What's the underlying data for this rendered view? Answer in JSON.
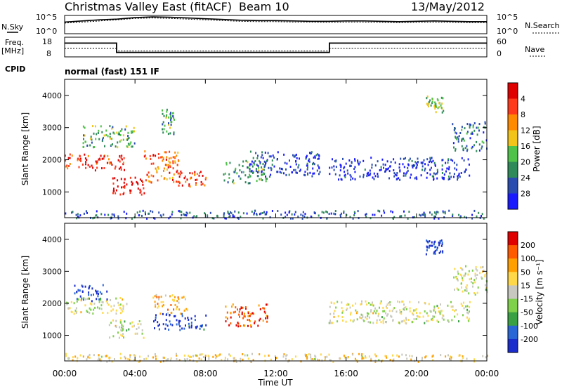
{
  "header": {
    "title": "Christmas Valley East (fitACF)",
    "beam": "Beam 10",
    "date": "13/May/2012"
  },
  "chart_data": [
    {
      "type": "line",
      "panel": "noise",
      "left_label": "N.Sky",
      "right_label": "N.Search",
      "left_ticks": [
        "10^5",
        "10^0"
      ],
      "right_ticks": [
        "10^5",
        "10^0"
      ],
      "series": [
        {
          "name": "N.Sky",
          "x": [
            0,
            1,
            2,
            3,
            4,
            5,
            6,
            7,
            8,
            9,
            10,
            11,
            12,
            13,
            14,
            15,
            16,
            17,
            18,
            19,
            20,
            21,
            22,
            23,
            24
          ],
          "values": [
            3.2,
            3.5,
            3.8,
            4.0,
            4.4,
            4.6,
            4.5,
            4.3,
            4.1,
            3.9,
            3.7,
            3.6,
            3.6,
            3.5,
            3.4,
            3.4,
            3.5,
            3.5,
            3.4,
            3.3,
            3.4,
            3.5,
            3.4,
            3.3,
            3.3
          ]
        },
        {
          "name": "N.Search",
          "x": [
            0,
            1,
            2,
            3,
            4,
            5,
            6,
            7,
            8,
            9,
            10,
            11,
            12,
            13,
            14,
            15,
            16,
            17,
            18,
            19,
            20,
            21,
            22,
            23,
            24
          ],
          "values": [
            2.9,
            3.2,
            3.5,
            3.8,
            4.2,
            4.3,
            4.2,
            4.0,
            3.8,
            3.6,
            3.4,
            3.3,
            3.3,
            3.2,
            3.2,
            3.1,
            3.2,
            3.2,
            3.1,
            3.0,
            3.1,
            3.2,
            3.1,
            3.0,
            3.0
          ]
        }
      ],
      "xlim": [
        0,
        24
      ],
      "ylim": [
        0,
        5
      ]
    },
    {
      "type": "line",
      "panel": "frequency",
      "left_label": "Freq.",
      "left_unit": "[MHz]",
      "right_label": "Nave",
      "left_ticks": [
        "18",
        "8"
      ],
      "right_ticks": [
        "60",
        "0"
      ],
      "series": [
        {
          "name": "Freq.",
          "x": [
            0,
            2.95,
            2.95,
            15.05,
            15.05,
            24
          ],
          "values": [
            15,
            15,
            10.3,
            10.3,
            15,
            15
          ]
        },
        {
          "name": "Nave",
          "x": [
            0,
            2.95,
            2.95,
            15.05,
            15.05,
            24
          ],
          "values": [
            26,
            26,
            18,
            18,
            26,
            26
          ]
        }
      ],
      "xlim": [
        0,
        24
      ],
      "ylim": [
        8,
        18
      ]
    },
    {
      "type": "text",
      "panel": "cpid",
      "label": "CPID",
      "value": "normal (fast) 151 IF"
    },
    {
      "type": "heatmap",
      "panel": "power",
      "ylabel": "Slant Range [km]",
      "yticks": [
        "1000",
        "2000",
        "3000",
        "4000"
      ],
      "ylim": [
        200,
        4500
      ],
      "xlim": [
        0,
        24
      ],
      "colorbar": {
        "label": "Power [dB]",
        "ticks": [
          "4",
          "8",
          "12",
          "16",
          "20",
          "24",
          "28"
        ],
        "colors": [
          "#1a1aff",
          "#2a4cb0",
          "#2f8a5a",
          "#4fc24a",
          "#f2c419",
          "#ff8a00",
          "#ff3a1a",
          "#e00000"
        ]
      },
      "regions": [
        {
          "x": [
            0,
            3.5
          ],
          "y": [
            1700,
            2200
          ],
          "level": 0.85
        },
        {
          "x": [
            2.5,
            4.5
          ],
          "y": [
            950,
            1500
          ],
          "level": 0.95
        },
        {
          "x": [
            4.5,
            6.5
          ],
          "y": [
            1300,
            2300
          ],
          "level": 0.75
        },
        {
          "x": [
            6.3,
            8.0
          ],
          "y": [
            1200,
            1700
          ],
          "level": 0.85
        },
        {
          "x": [
            1.0,
            4.0
          ],
          "y": [
            2400,
            3100
          ],
          "level": 0.4
        },
        {
          "x": [
            5.5,
            6.2
          ],
          "y": [
            2800,
            3600
          ],
          "level": 0.35
        },
        {
          "x": [
            9.0,
            11.5
          ],
          "y": [
            1300,
            2000
          ],
          "level": 0.35
        },
        {
          "x": [
            10.5,
            14.5
          ],
          "y": [
            1500,
            2300
          ],
          "level": 0.15
        },
        {
          "x": [
            15.0,
            23.0
          ],
          "y": [
            1400,
            2100
          ],
          "level": 0.1
        },
        {
          "x": [
            20.5,
            21.5
          ],
          "y": [
            3500,
            4000
          ],
          "level": 0.45
        },
        {
          "x": [
            22.0,
            24.0
          ],
          "y": [
            2300,
            3200
          ],
          "level": 0.25
        },
        {
          "x": [
            0,
            24
          ],
          "y": [
            200,
            450
          ],
          "level": 0.2
        }
      ]
    },
    {
      "type": "heatmap",
      "panel": "velocity",
      "ylabel": "Slant Range [km]",
      "xlabel": "Time UT",
      "yticks": [
        "1000",
        "2000",
        "3000",
        "4000"
      ],
      "xticks": [
        "00:00",
        "04:00",
        "08:00",
        "12:00",
        "16:00",
        "20:00",
        "00:00"
      ],
      "ylim": [
        200,
        4500
      ],
      "xlim": [
        0,
        24
      ],
      "colorbar": {
        "label": "Velocity [m s⁻¹]",
        "ticks": [
          "200",
          "100",
          "50",
          "15",
          "-15",
          "-50",
          "-100",
          "-200"
        ],
        "colors": [
          "#1a2dcc",
          "#2a66d6",
          "#3aa044",
          "#7fd04a",
          "#c8c8c0",
          "#ffd84a",
          "#ffa000",
          "#ff5a00",
          "#e00000"
        ]
      },
      "regions": [
        {
          "x": [
            0,
            3.5
          ],
          "y": [
            1700,
            2200
          ],
          "level": 0.5
        },
        {
          "x": [
            0.5,
            2.5
          ],
          "y": [
            2100,
            2600
          ],
          "level": 0.1
        },
        {
          "x": [
            2.5,
            4.5
          ],
          "y": [
            950,
            1500
          ],
          "level": 0.5
        },
        {
          "x": [
            5.0,
            8.0
          ],
          "y": [
            1200,
            1700
          ],
          "level": 0.05
        },
        {
          "x": [
            5.0,
            7.0
          ],
          "y": [
            1700,
            2300
          ],
          "level": 0.65
        },
        {
          "x": [
            9.0,
            11.5
          ],
          "y": [
            1300,
            2000
          ],
          "level": 0.85
        },
        {
          "x": [
            15.0,
            23.0
          ],
          "y": [
            1400,
            2100
          ],
          "level": 0.5
        },
        {
          "x": [
            20.5,
            21.5
          ],
          "y": [
            3500,
            4000
          ],
          "level": 0.05
        },
        {
          "x": [
            22.0,
            24.0
          ],
          "y": [
            2300,
            3200
          ],
          "level": 0.5
        },
        {
          "x": [
            0,
            24
          ],
          "y": [
            200,
            450
          ],
          "level": 0.6
        }
      ]
    }
  ]
}
